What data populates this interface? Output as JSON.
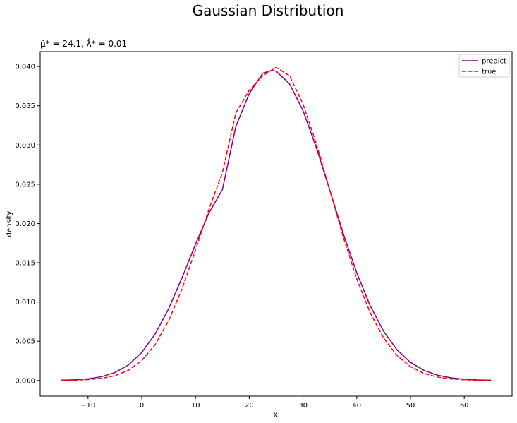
{
  "chart_data": {
    "type": "line",
    "title": "Gaussian Distribution",
    "subtitle": "μ̂* = 24.1, λ̂* = 0.01",
    "xlabel": "x",
    "ylabel": "density",
    "xlim": [
      -18.9,
      68.9
    ],
    "ylim": [
      -0.002,
      0.0419
    ],
    "x_ticks": [
      -10,
      0,
      10,
      20,
      30,
      40,
      50,
      60
    ],
    "x_tick_labels": [
      "−10",
      "0",
      "10",
      "20",
      "30",
      "40",
      "50",
      "60"
    ],
    "y_ticks": [
      0,
      0.005,
      0.01,
      0.015,
      0.02,
      0.025,
      0.03,
      0.035,
      0.04
    ],
    "y_tick_labels": [
      "0.000",
      "0.005",
      "0.010",
      "0.015",
      "0.020",
      "0.025",
      "0.030",
      "0.035",
      "0.040"
    ],
    "grid": false,
    "legend_position": "upper-right",
    "series": [
      {
        "name": "predict",
        "color": "#800080",
        "style": "solid",
        "x": [
          -15,
          -12.5,
          -10,
          -7.5,
          -5,
          -2.5,
          0,
          2.5,
          5,
          7.5,
          10,
          12.5,
          15,
          17.5,
          20,
          22.5,
          24.1,
          25,
          27.5,
          30,
          32.5,
          35,
          37.5,
          40,
          42.5,
          45,
          47.5,
          50,
          52.5,
          55,
          57.5,
          60,
          62.5,
          65
        ],
        "y": [
          3e-05,
          9e-05,
          0.00021,
          0.00048,
          0.00101,
          0.00197,
          0.00356,
          0.00593,
          0.00915,
          0.0131,
          0.01737,
          0.02135,
          0.02431,
          0.03235,
          0.03656,
          0.03914,
          0.0395,
          0.03941,
          0.03779,
          0.03437,
          0.02962,
          0.02418,
          0.0187,
          0.01371,
          0.00952,
          0.00626,
          0.0039,
          0.0023,
          0.00129,
          0.00068,
          0.00034,
          0.00016,
          7e-05,
          3e-05
        ]
      },
      {
        "name": "true",
        "color": "#ff0000",
        "style": "dashed",
        "x": [
          -15,
          -12.5,
          -10,
          -7.5,
          -5,
          -2.5,
          0,
          2.5,
          5,
          7.5,
          10,
          12.5,
          15,
          17.5,
          20,
          22.5,
          25,
          27.5,
          30,
          32.5,
          35,
          37.5,
          40,
          42.5,
          45,
          47.5,
          50,
          52.5,
          55,
          57.5,
          60,
          62.5,
          65
        ],
        "y": [
          1e-05,
          4e-05,
          0.00011,
          0.00027,
          0.00061,
          0.0013,
          0.00254,
          0.00458,
          0.00762,
          0.0117,
          0.01663,
          0.02182,
          0.02648,
          0.03408,
          0.03698,
          0.03881,
          0.03989,
          0.03881,
          0.03521,
          0.03011,
          0.0242,
          0.01826,
          0.01295,
          0.00863,
          0.0054,
          0.00317,
          0.00175,
          0.0009,
          0.00044,
          0.0002,
          9e-05,
          3e-05,
          1e-05
        ]
      }
    ]
  }
}
